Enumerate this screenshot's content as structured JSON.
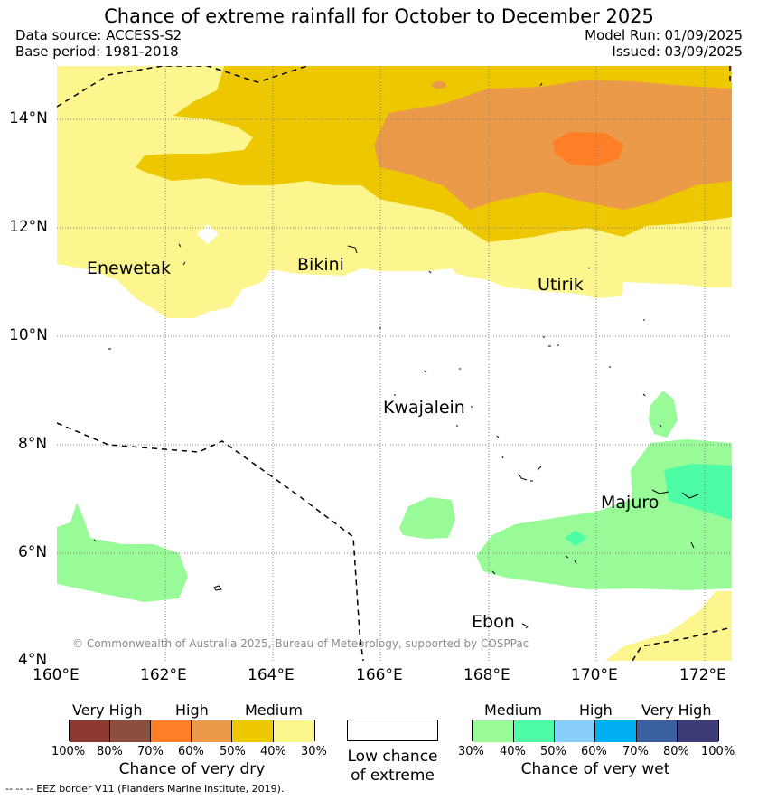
{
  "title": "Chance of extreme rainfall for October to December 2025",
  "header": {
    "data_source": "Data source: ACCESS-S2",
    "base_period": "Base period: 1981-2018",
    "model_run": "Model Run: 01/09/2025",
    "issued": "Issued: 03/09/2025"
  },
  "map": {
    "lat_labels": [
      "14°N",
      "12°N",
      "10°N",
      "8°N",
      "6°N",
      "4°N"
    ],
    "lon_labels": [
      "160°E",
      "162°E",
      "164°E",
      "166°E",
      "168°E",
      "170°E",
      "172°E"
    ],
    "places": [
      "Enewetak",
      "Bikini",
      "Utirik",
      "Kwajalein",
      "Majuro",
      "Ebon"
    ],
    "credit": "© Commonwealth of Australia 2025, Bureau of Meteorology, supported by COSPPac"
  },
  "legend": {
    "dry": {
      "groups": [
        "Very High",
        "High",
        "Medium"
      ],
      "ticks": [
        "100%",
        "80%",
        "70%",
        "60%",
        "50%",
        "40%",
        "30%"
      ],
      "colors": [
        "#8c3a2f",
        "#8c4f3d",
        "#ff7f27",
        "#eb9a4a",
        "#edc800",
        "#fdf58e"
      ],
      "caption": "Chance of very dry"
    },
    "low": {
      "caption_line1": "Low chance",
      "caption_line2": "of extreme"
    },
    "wet": {
      "groups": [
        "Medium",
        "High",
        "Very High"
      ],
      "ticks": [
        "30%",
        "40%",
        "50%",
        "60%",
        "70%",
        "80%",
        "100%"
      ],
      "colors": [
        "#98fb98",
        "#4dfca4",
        "#87cefa",
        "#00b0f0",
        "#3a5fa0",
        "#3d3c78"
      ],
      "caption": "Chance of very wet"
    },
    "eez_note": "--  --  -- EEZ border V11 (Flanders Marine Institute, 2019)."
  }
}
